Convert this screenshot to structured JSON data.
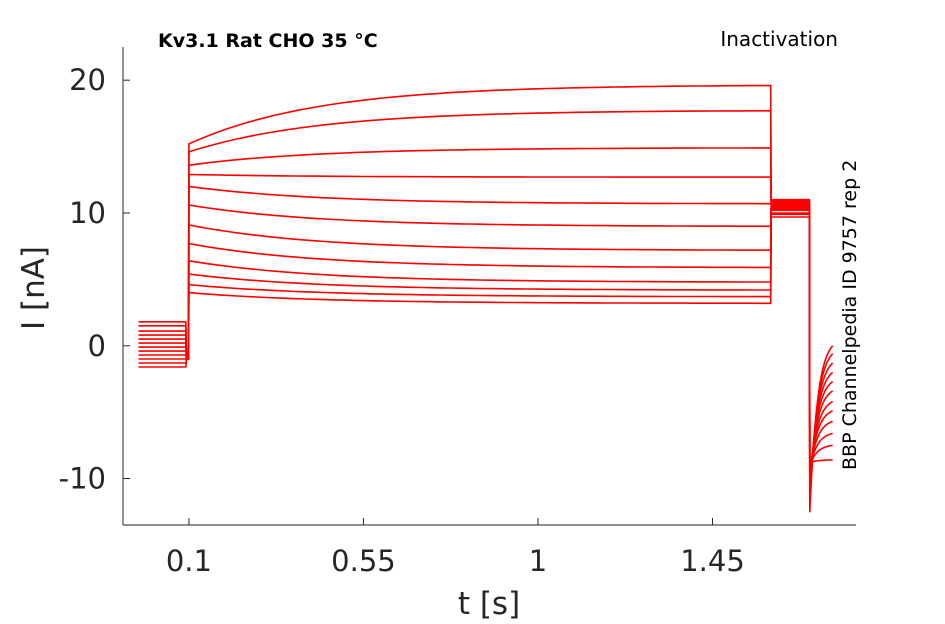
{
  "chart_data": {
    "type": "line",
    "title": "Kv3.1  Rat  CHO  35 °C",
    "annotation_top_right": "Inactivation",
    "annotation_side": "BBP Channelpedia ID 9757 rep 2",
    "xlabel": "t [s]",
    "ylabel": "I [nA]",
    "xticks": [
      {
        "value": 0.1,
        "label": "0.1"
      },
      {
        "value": 0.55,
        "label": "0.55"
      },
      {
        "value": 1.0,
        "label": "1"
      },
      {
        "value": 1.45,
        "label": "1.45"
      }
    ],
    "yticks": [
      {
        "value": 20,
        "label": "20"
      },
      {
        "value": 10,
        "label": "10"
      },
      {
        "value": 0,
        "label": "0"
      },
      {
        "value": -10,
        "label": "-10"
      }
    ],
    "xlim": [
      -0.07,
      1.82
    ],
    "ylim": [
      -13.5,
      22.5
    ],
    "grid": false,
    "line_color": "#ff0000",
    "axis_color": "#262626",
    "protocol_times": {
      "pre_start": -0.03,
      "step_on": 0.1,
      "step_off": 1.6,
      "test_off": 1.7,
      "tail_end": 1.76
    },
    "series": [
      {
        "pre": 1.8,
        "peak": 15.2,
        "end": 19.6,
        "test": 11.0,
        "tail_min": -12.5,
        "tail_end": 0.0
      },
      {
        "pre": 1.5,
        "peak": 14.6,
        "end": 17.7,
        "test": 10.9,
        "tail_min": -11.9,
        "tail_end": -0.6
      },
      {
        "pre": 1.1,
        "peak": 13.6,
        "end": 14.9,
        "test": 10.8,
        "tail_min": -11.4,
        "tail_end": -1.3
      },
      {
        "pre": 0.8,
        "peak": 12.9,
        "end": 12.7,
        "test": 10.7,
        "tail_min": -10.9,
        "tail_end": -2.0
      },
      {
        "pre": 0.5,
        "peak": 12.0,
        "end": 10.7,
        "test": 10.6,
        "tail_min": -10.5,
        "tail_end": -2.7
      },
      {
        "pre": 0.2,
        "peak": 10.6,
        "end": 9.0,
        "test": 10.5,
        "tail_min": -10.2,
        "tail_end": -3.4
      },
      {
        "pre": -0.1,
        "peak": 9.1,
        "end": 7.2,
        "test": 10.4,
        "tail_min": -9.9,
        "tail_end": -4.2
      },
      {
        "pre": -0.4,
        "peak": 7.7,
        "end": 5.9,
        "test": 10.3,
        "tail_min": -9.6,
        "tail_end": -4.9
      },
      {
        "pre": -0.7,
        "peak": 6.4,
        "end": 4.8,
        "test": 10.2,
        "tail_min": -9.4,
        "tail_end": -5.7
      },
      {
        "pre": -1.0,
        "peak": 5.4,
        "end": 4.2,
        "test": 10.0,
        "tail_min": -9.2,
        "tail_end": -6.6
      },
      {
        "pre": -1.3,
        "peak": 4.6,
        "end": 3.7,
        "test": 9.9,
        "tail_min": -9.0,
        "tail_end": -7.5
      },
      {
        "pre": -1.6,
        "peak": 4.0,
        "end": 3.2,
        "test": 9.7,
        "tail_min": -8.8,
        "tail_end": -8.6
      }
    ]
  }
}
